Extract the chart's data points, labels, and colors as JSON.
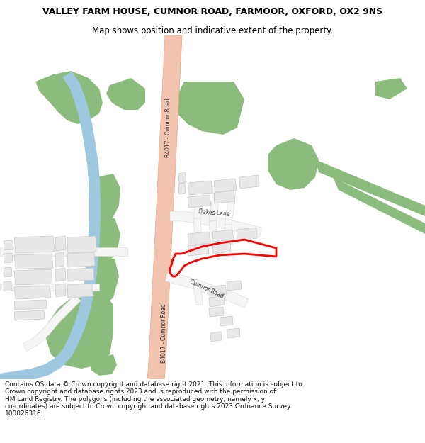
{
  "title": "VALLEY FARM HOUSE, CUMNOR ROAD, FARMOOR, OXFORD, OX2 9NS",
  "subtitle": "Map shows position and indicative extent of the property.",
  "footer": "Contains OS data © Crown copyright and database right 2021. This information is subject to Crown copyright and database rights 2023 and is reproduced with the permission of HM Land Registry. The polygons (including the associated geometry, namely x, y co-ordinates) are subject to Crown copyright and database rights 2023 Ordnance Survey 100026316.",
  "bg_color": "#ffffff",
  "map_bg": "#ffffff",
  "road_main_color": "#f2c4b0",
  "road_main_edge": "#e8a888",
  "green_color": "#8cbb7e",
  "water_color": "#9ec8e0",
  "building_color": "#e8e8e8",
  "building_edge": "#c8c8c8",
  "road_minor_color": "#f5f5f5",
  "road_minor_edge": "#d8d8d8",
  "red_color": "#ff0000",
  "text_color": "#333333",
  "footer_color": "#111111"
}
